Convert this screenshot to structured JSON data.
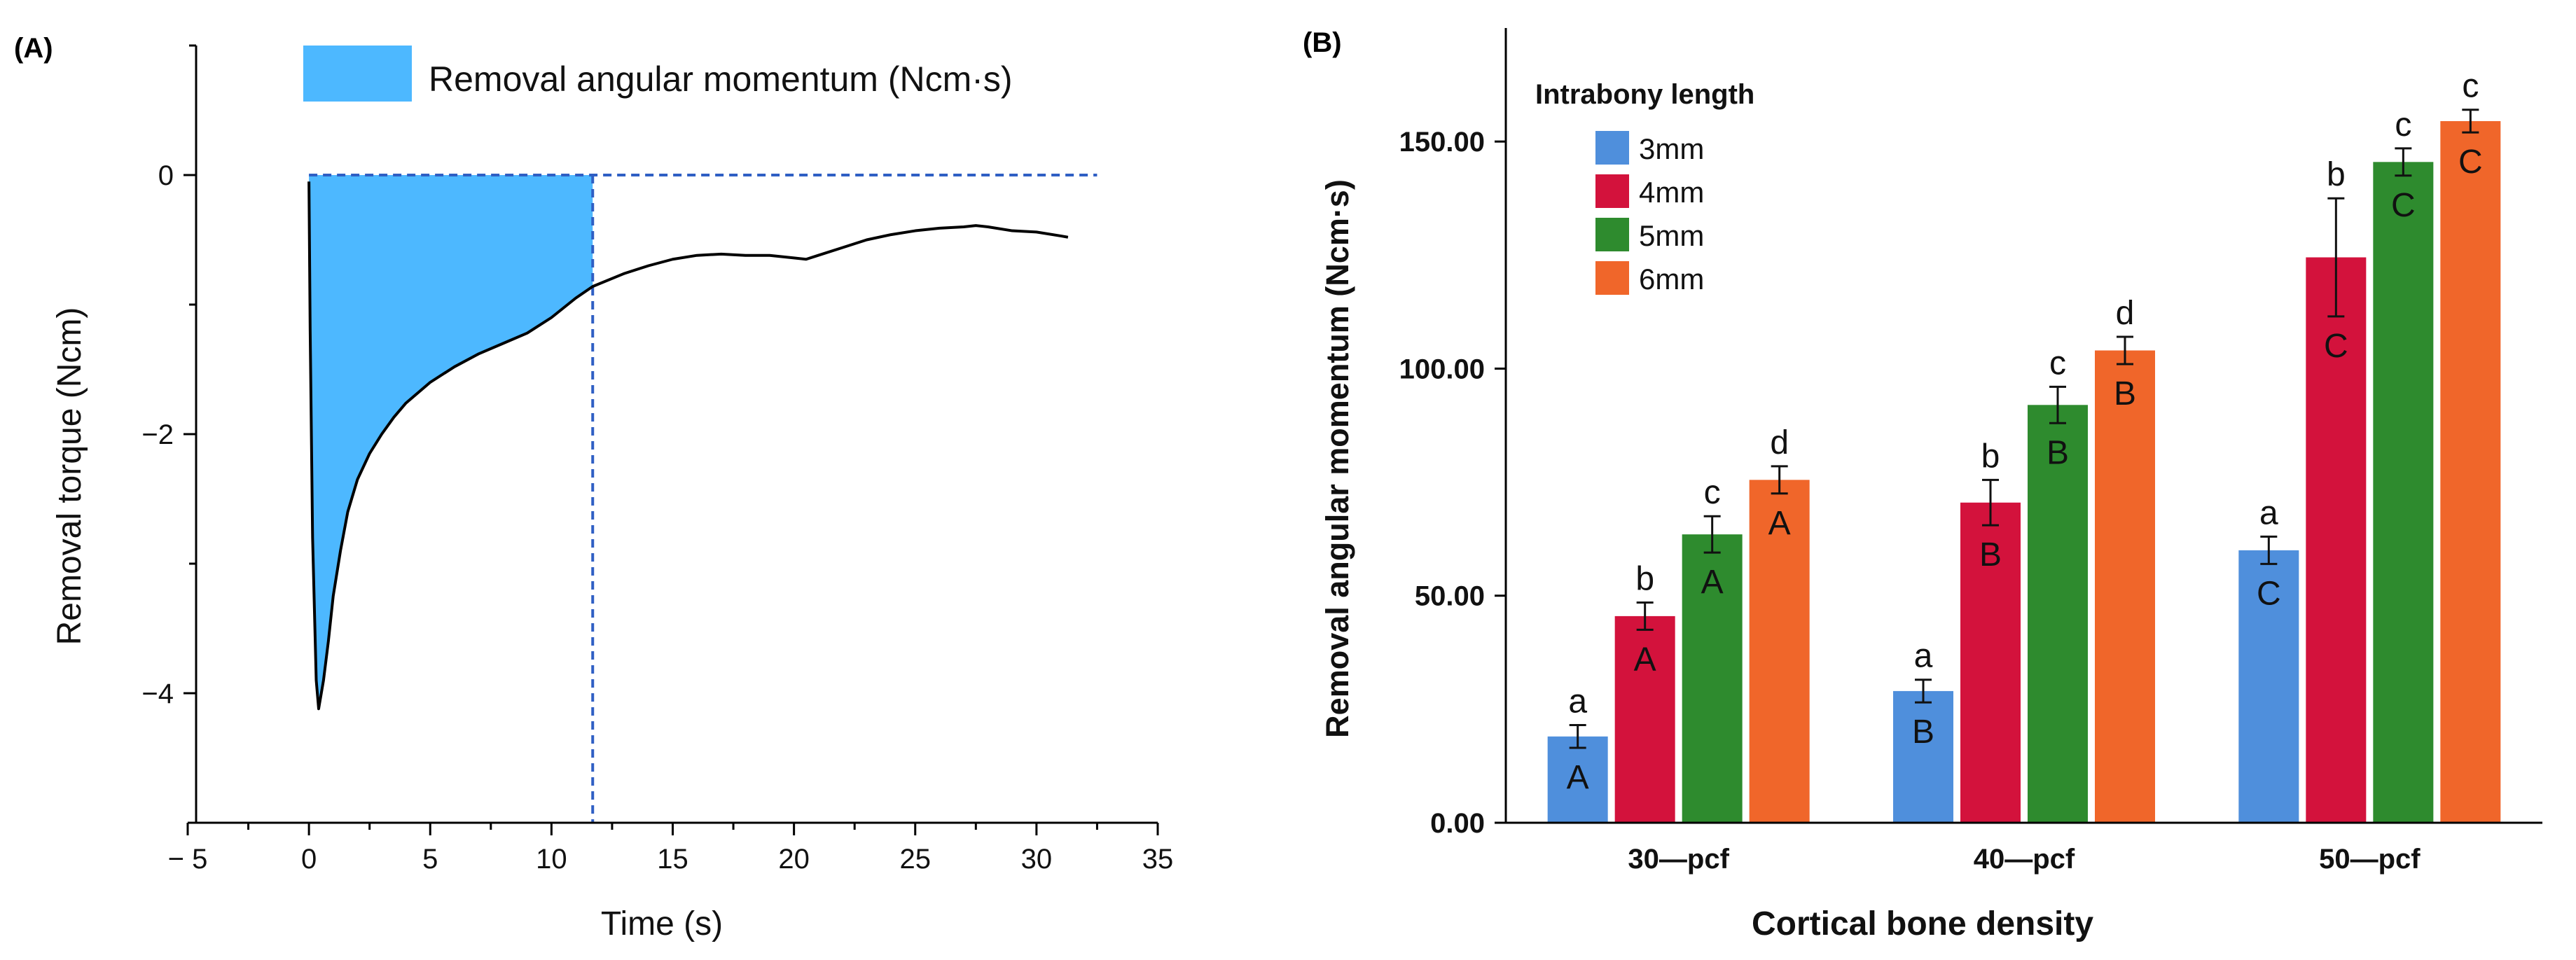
{
  "chart_data": [
    {
      "panel_label": "(A)",
      "type": "area",
      "xlabel": "Time (s)",
      "ylabel": "Removal torque (Ncm)",
      "xlim": [
        -5,
        35
      ],
      "ylim": [
        -5,
        1
      ],
      "xticks": [
        -5,
        0,
        5,
        10,
        15,
        20,
        25,
        30,
        35
      ],
      "xtick_labels": [
        "− 5",
        "0",
        "5",
        "10",
        "15",
        "20",
        "25",
        "30",
        "35"
      ],
      "yticks": [
        0,
        -2,
        -4
      ],
      "ytick_labels": [
        "0",
        "−2",
        "−4"
      ],
      "legend": {
        "label": "Removal angular momentum (Ncm·s)",
        "color": "#4DB8FF",
        "placement": "top"
      },
      "reference_lines": {
        "y_zero_dashed": 0,
        "x_cutoff_dashed": 11.7,
        "color": "#2F5FC4"
      },
      "shaded_region": {
        "from_x": 0,
        "to_x": 11.7,
        "color": "#4DB8FF"
      },
      "series": [
        {
          "name": "Removal torque",
          "color": "#000000",
          "x": [
            0,
            0.05,
            0.15,
            0.3,
            0.4,
            0.6,
            0.8,
            1.0,
            1.3,
            1.6,
            2.0,
            2.5,
            3.0,
            3.5,
            4.0,
            5.0,
            6.0,
            7.0,
            8.0,
            9.0,
            10.0,
            11.0,
            11.7,
            13.0,
            14.0,
            15.0,
            16.0,
            17.0,
            18.0,
            19.0,
            20.0,
            20.5,
            21.0,
            22.0,
            23.0,
            24.0,
            25.0,
            26.0,
            27.0,
            27.5,
            28.0,
            29.0,
            30.0,
            31.0,
            31.3
          ],
          "y": [
            -0.05,
            -1.2,
            -2.8,
            -3.9,
            -4.12,
            -3.9,
            -3.6,
            -3.25,
            -2.9,
            -2.6,
            -2.35,
            -2.15,
            -2.0,
            -1.87,
            -1.76,
            -1.6,
            -1.48,
            -1.38,
            -1.3,
            -1.22,
            -1.1,
            -0.95,
            -0.86,
            -0.76,
            -0.7,
            -0.65,
            -0.62,
            -0.61,
            -0.62,
            -0.62,
            -0.64,
            -0.65,
            -0.62,
            -0.56,
            -0.5,
            -0.46,
            -0.43,
            -0.41,
            -0.4,
            -0.39,
            -0.4,
            -0.43,
            -0.44,
            -0.47,
            -0.48
          ]
        }
      ]
    },
    {
      "panel_label": "(B)",
      "type": "bar",
      "xlabel": "Cortical bone density",
      "ylabel": "Removal angular momentum (Ncm·s)",
      "ylim": [
        0,
        175
      ],
      "yticks": [
        0,
        50,
        100,
        150
      ],
      "ytick_labels": [
        "0.00",
        "50.00",
        "100.00",
        "150.00"
      ],
      "categories": [
        "30—pcf",
        "40—pcf",
        "50—pcf"
      ],
      "legend": {
        "title": "Intrabony length",
        "placement": "top-left"
      },
      "series": [
        {
          "name": "3mm",
          "color": "#4F8FDC",
          "values": [
            19,
            29,
            60
          ],
          "errors": [
            2.5,
            2.5,
            3
          ],
          "letters_lower": [
            "a",
            "a",
            "a"
          ],
          "letters_upper": [
            "A",
            "B",
            "C"
          ]
        },
        {
          "name": "4mm",
          "color": "#D3123C",
          "values": [
            45.5,
            70.5,
            124.5
          ],
          "errors": [
            3,
            5,
            13
          ],
          "letters_lower": [
            "b",
            "b",
            "b"
          ],
          "letters_upper": [
            "A",
            "B",
            "C"
          ]
        },
        {
          "name": "5mm",
          "color": "#2E8B2E",
          "values": [
            63.5,
            92,
            145.5
          ],
          "errors": [
            4,
            4,
            3
          ],
          "letters_lower": [
            "c",
            "c",
            "c"
          ],
          "letters_upper": [
            "A",
            "B",
            "C"
          ]
        },
        {
          "name": "6mm",
          "color": "#F0662A",
          "values": [
            75.5,
            104,
            154.5
          ],
          "errors": [
            3,
            3,
            2.5
          ],
          "letters_lower": [
            "d",
            "d",
            "c"
          ],
          "letters_upper": [
            "A",
            "B",
            "C"
          ]
        }
      ]
    }
  ]
}
